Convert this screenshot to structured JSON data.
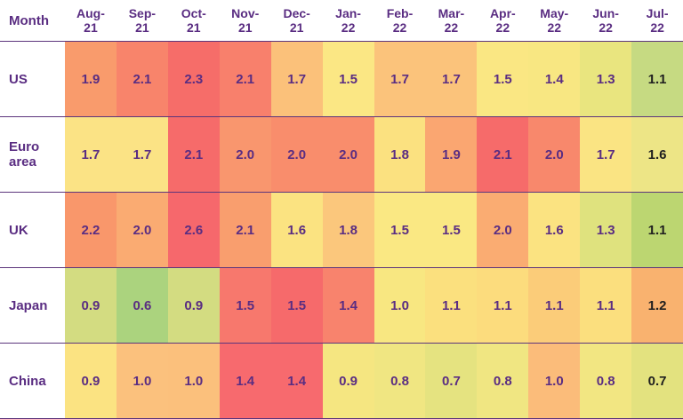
{
  "colors": {
    "text_purple": "#5a2d82",
    "text_black": "#1f1f1f",
    "grid_line": "#5c357c",
    "background": "#ffffff"
  },
  "chart_data": {
    "type": "heatmap",
    "corner_label": "Month",
    "x_categories": [
      "Aug-21",
      "Sep-21",
      "Oct-21",
      "Nov-21",
      "Dec-21",
      "Jan-22",
      "Feb-22",
      "Mar-22",
      "Apr-22",
      "May-22",
      "Jun-22",
      "Jul-22"
    ],
    "rows": [
      {
        "label": "US",
        "values": [
          "1.9",
          "2.1",
          "2.3",
          "2.1",
          "1.7",
          "1.5",
          "1.7",
          "1.7",
          "1.5",
          "1.4",
          "1.3",
          "1.1"
        ],
        "cell_colors": [
          "#f99b6c",
          "#f8846b",
          "#f66d69",
          "#f8806c",
          "#fbc17a",
          "#fbe784",
          "#fbc37b",
          "#fbc37b",
          "#fae783",
          "#f8e782",
          "#e9e57f",
          "#c6da82"
        ]
      },
      {
        "label": "Euro area",
        "values": [
          "1.7",
          "1.7",
          "2.1",
          "2.0",
          "2.0",
          "2.0",
          "1.8",
          "1.9",
          "2.1",
          "2.0",
          "1.7",
          "1.6"
        ],
        "cell_colors": [
          "#fbe385",
          "#fbe385",
          "#f66b6a",
          "#f9966e",
          "#f98d6c",
          "#f98d6c",
          "#fbe180",
          "#faa671",
          "#f66b6a",
          "#f8886c",
          "#fae483",
          "#ede586"
        ]
      },
      {
        "label": "UK",
        "values": [
          "2.2",
          "2.0",
          "2.6",
          "2.1",
          "1.6",
          "1.8",
          "1.5",
          "1.5",
          "2.0",
          "1.6",
          "1.3",
          "1.1"
        ],
        "cell_colors": [
          "#f9976b",
          "#faab72",
          "#f6686c",
          "#f99e6e",
          "#fbe381",
          "#fbc77c",
          "#fae883",
          "#fae883",
          "#faac72",
          "#fbe381",
          "#dfe27e",
          "#bcd671"
        ]
      },
      {
        "label": "Japan",
        "values": [
          "0.9",
          "0.6",
          "0.9",
          "1.5",
          "1.5",
          "1.4",
          "1.0",
          "1.1",
          "1.1",
          "1.1",
          "1.1",
          "1.2"
        ],
        "cell_colors": [
          "#d3dc81",
          "#abd37e",
          "#d3dc81",
          "#f7786d",
          "#f66a6b",
          "#f8836d",
          "#f8e781",
          "#fbe07e",
          "#fcdc7d",
          "#fbcc79",
          "#fbdf7e",
          "#f9b26f"
        ]
      },
      {
        "label": "China",
        "values": [
          "0.9",
          "1.0",
          "1.0",
          "1.4",
          "1.4",
          "0.9",
          "0.8",
          "0.7",
          "0.8",
          "1.0",
          "0.8",
          "0.7"
        ],
        "cell_colors": [
          "#fbe382",
          "#fbc17d",
          "#fbc07c",
          "#f76a6e",
          "#f76a6e",
          "#f5e681",
          "#f0e682",
          "#e5e380",
          "#f0e682",
          "#fbbc7a",
          "#f2e682",
          "#e3e27f"
        ]
      }
    ],
    "value_text_color": "#5a2d82",
    "last_column_value_text_color": "#1f1f1f",
    "legend": "none",
    "grid": "horizontal-purple-rules"
  }
}
